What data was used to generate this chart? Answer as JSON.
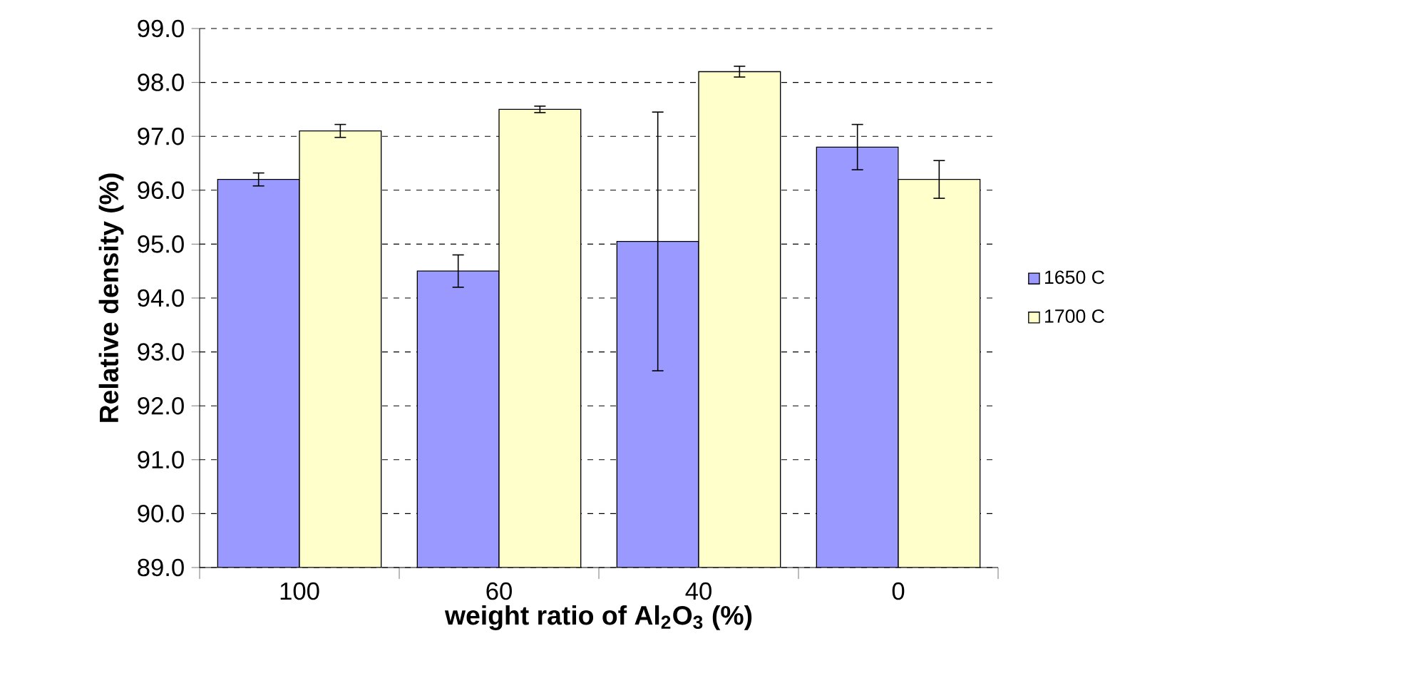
{
  "chart_data": {
    "type": "bar",
    "xlabel": "weight ratio of Al$_{2}$O$_{3}$ (%)",
    "ylabel": "Relative density (%)",
    "categories": [
      "100",
      "60",
      "40",
      "0"
    ],
    "series": [
      {
        "name": "1650 C",
        "color": "#9999ff",
        "values": [
          96.2,
          94.5,
          95.05,
          96.8
        ],
        "errors": [
          0.12,
          0.3,
          2.4,
          0.42
        ]
      },
      {
        "name": "1700 C",
        "color": "#ffffcc",
        "values": [
          97.1,
          97.5,
          98.2,
          96.2
        ],
        "errors": [
          0.12,
          0.06,
          0.1,
          0.35
        ]
      }
    ],
    "ylim": [
      89,
      99
    ],
    "yticks": [
      {
        "value": 89,
        "label": "89.0"
      },
      {
        "value": 90,
        "label": "90.0"
      },
      {
        "value": 91,
        "label": "91.0"
      },
      {
        "value": 92,
        "label": "92.0"
      },
      {
        "value": 93,
        "label": "93.0"
      },
      {
        "value": 94,
        "label": "94.0"
      },
      {
        "value": 95,
        "label": "95.0"
      },
      {
        "value": 96,
        "label": "96.0"
      },
      {
        "value": 97,
        "label": "97.0"
      },
      {
        "value": 98,
        "label": "98.0"
      },
      {
        "value": 99,
        "label": "99.0"
      }
    ],
    "grid": "y",
    "legend": "right"
  }
}
